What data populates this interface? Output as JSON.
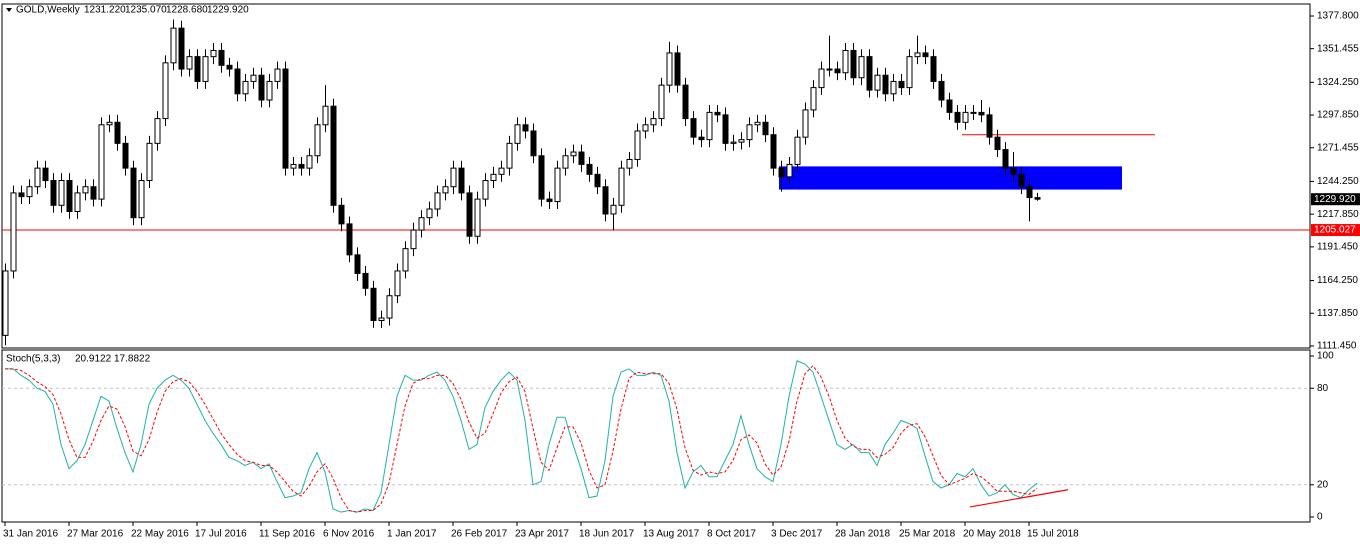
{
  "chart_data": [
    {
      "type": "candlestick",
      "title": "GOLD,Weekly",
      "header_values": [
        "1231.220",
        "1235.070",
        "1228.680",
        "1229.920"
      ],
      "categories": [
        "31 Jan 2016",
        null,
        null,
        null,
        null,
        null,
        null,
        null,
        "27 Mar 2016",
        null,
        null,
        null,
        null,
        null,
        null,
        null,
        "22 May 2016",
        null,
        null,
        null,
        null,
        null,
        null,
        null,
        "17 Jul 2016",
        null,
        null,
        null,
        null,
        null,
        null,
        null,
        "11 Sep 2016",
        null,
        null,
        null,
        null,
        null,
        null,
        null,
        "6 Nov 2016",
        null,
        null,
        null,
        null,
        null,
        null,
        null,
        "1 Jan 2017",
        null,
        null,
        null,
        null,
        null,
        null,
        null,
        "26 Feb 2017",
        null,
        null,
        null,
        null,
        null,
        null,
        null,
        "23 Apr 2017",
        null,
        null,
        null,
        null,
        null,
        null,
        null,
        "18 Jun 2017",
        null,
        null,
        null,
        null,
        null,
        null,
        null,
        "13 Aug 2017",
        null,
        null,
        null,
        null,
        null,
        null,
        null,
        "8 Oct 2017",
        null,
        null,
        null,
        null,
        null,
        null,
        null,
        "3 Dec 2017",
        null,
        null,
        null,
        null,
        null,
        null,
        null,
        "28 Jan 2018",
        null,
        null,
        null,
        null,
        null,
        null,
        null,
        "25 Mar 2018",
        null,
        null,
        null,
        null,
        null,
        null,
        null,
        "20 May 2018",
        null,
        null,
        null,
        null,
        null,
        null,
        null,
        "15 Jul 2018",
        null
      ],
      "open": [
        1120,
        1172,
        1235,
        1232,
        1240,
        1255,
        1245,
        1225,
        1245,
        1220,
        1235,
        1240,
        1230,
        1290,
        1292,
        1275,
        1255,
        1215,
        1245,
        1275,
        1295,
        1340,
        1368,
        1335,
        1345,
        1325,
        1345,
        1350,
        1338,
        1335,
        1315,
        1325,
        1330,
        1310,
        1325,
        1335,
        1255,
        1258,
        1255,
        1265,
        1290,
        1305,
        1225,
        1210,
        1185,
        1170,
        1158,
        1132,
        1134,
        1152,
        1172,
        1190,
        1205,
        1215,
        1222,
        1235,
        1240,
        1255,
        1235,
        1200,
        1230,
        1245,
        1250,
        1255,
        1275,
        1290,
        1285,
        1265,
        1230,
        1228,
        1255,
        1265,
        1268,
        1258,
        1250,
        1240,
        1218,
        1225,
        1255,
        1262,
        1285,
        1290,
        1295,
        1322,
        1348,
        1322,
        1295,
        1280,
        1278,
        1300,
        1298,
        1275,
        1276,
        1278,
        1290,
        1292,
        1282,
        1255,
        1248,
        1258,
        1280,
        1302,
        1320,
        1335,
        1335,
        1332,
        1350,
        1328,
        1345,
        1318,
        1330,
        1315,
        1325,
        1320,
        1345,
        1348,
        1345,
        1325,
        1310,
        1300,
        1292,
        1300,
        1300,
        1298,
        1280,
        1270,
        1255,
        1250,
        1240,
        1231.22
      ],
      "high": [
        1178,
        1241,
        1241,
        1246,
        1261,
        1261,
        1251,
        1251,
        1251,
        1241,
        1246,
        1246,
        1296,
        1298,
        1298,
        1281,
        1261,
        1251,
        1281,
        1301,
        1346,
        1375,
        1374,
        1351,
        1351,
        1351,
        1356,
        1356,
        1344,
        1341,
        1331,
        1336,
        1336,
        1331,
        1341,
        1341,
        1264,
        1264,
        1271,
        1296,
        1322,
        1311,
        1231,
        1216,
        1191,
        1176,
        1164,
        1140,
        1158,
        1178,
        1196,
        1211,
        1221,
        1228,
        1241,
        1246,
        1261,
        1261,
        1241,
        1236,
        1251,
        1256,
        1261,
        1281,
        1296,
        1296,
        1291,
        1271,
        1236,
        1261,
        1271,
        1274,
        1274,
        1264,
        1256,
        1246,
        1231,
        1261,
        1268,
        1291,
        1296,
        1301,
        1328,
        1357,
        1354,
        1328,
        1301,
        1286,
        1306,
        1306,
        1304,
        1282,
        1284,
        1296,
        1298,
        1298,
        1288,
        1261,
        1264,
        1286,
        1308,
        1326,
        1341,
        1362,
        1341,
        1356,
        1356,
        1351,
        1351,
        1336,
        1336,
        1331,
        1331,
        1351,
        1362,
        1354,
        1351,
        1331,
        1316,
        1306,
        1306,
        1306,
        1310,
        1304,
        1286,
        1276,
        1268,
        1256,
        1246,
        1235.07
      ],
      "low": [
        1112,
        1166,
        1226,
        1226,
        1234,
        1239,
        1219,
        1219,
        1214,
        1214,
        1229,
        1224,
        1224,
        1284,
        1269,
        1249,
        1209,
        1209,
        1239,
        1269,
        1289,
        1334,
        1329,
        1329,
        1319,
        1319,
        1339,
        1332,
        1329,
        1309,
        1309,
        1319,
        1304,
        1304,
        1319,
        1249,
        1249,
        1249,
        1249,
        1259,
        1284,
        1219,
        1204,
        1179,
        1164,
        1152,
        1126,
        1126,
        1128,
        1146,
        1166,
        1184,
        1199,
        1209,
        1216,
        1229,
        1234,
        1229,
        1194,
        1194,
        1224,
        1239,
        1244,
        1249,
        1269,
        1279,
        1259,
        1224,
        1222,
        1222,
        1249,
        1259,
        1252,
        1244,
        1234,
        1212,
        1205,
        1219,
        1249,
        1256,
        1279,
        1284,
        1289,
        1316,
        1316,
        1289,
        1274,
        1272,
        1272,
        1292,
        1269,
        1269,
        1270,
        1272,
        1284,
        1276,
        1249,
        1236,
        1242,
        1252,
        1274,
        1296,
        1314,
        1329,
        1326,
        1326,
        1322,
        1322,
        1312,
        1312,
        1309,
        1309,
        1314,
        1314,
        1339,
        1339,
        1319,
        1304,
        1294,
        1286,
        1286,
        1294,
        1292,
        1274,
        1264,
        1249,
        1244,
        1234,
        1212,
        1228.68
      ],
      "close": [
        1172,
        1235,
        1232,
        1240,
        1255,
        1245,
        1225,
        1245,
        1220,
        1235,
        1240,
        1230,
        1290,
        1292,
        1275,
        1255,
        1215,
        1245,
        1275,
        1295,
        1340,
        1368,
        1335,
        1345,
        1325,
        1345,
        1350,
        1338,
        1335,
        1315,
        1325,
        1330,
        1310,
        1325,
        1335,
        1255,
        1258,
        1255,
        1265,
        1290,
        1305,
        1225,
        1210,
        1185,
        1170,
        1158,
        1132,
        1134,
        1152,
        1172,
        1190,
        1205,
        1215,
        1222,
        1235,
        1240,
        1255,
        1235,
        1200,
        1230,
        1245,
        1250,
        1255,
        1275,
        1290,
        1285,
        1265,
        1230,
        1228,
        1255,
        1265,
        1268,
        1258,
        1250,
        1240,
        1218,
        1225,
        1255,
        1262,
        1285,
        1290,
        1295,
        1322,
        1348,
        1322,
        1295,
        1280,
        1278,
        1300,
        1298,
        1275,
        1276,
        1278,
        1290,
        1292,
        1282,
        1255,
        1248,
        1258,
        1280,
        1302,
        1320,
        1335,
        1335,
        1332,
        1350,
        1328,
        1345,
        1318,
        1330,
        1315,
        1325,
        1320,
        1345,
        1348,
        1345,
        1325,
        1310,
        1300,
        1292,
        1300,
        1300,
        1298,
        1280,
        1270,
        1255,
        1250,
        1240,
        1231.22,
        1229.92
      ],
      "ylim": [
        1109.8,
        1387.5
      ],
      "yticks": [
        {
          "value": 1377.8,
          "label": "1377.800"
        },
        {
          "value": 1351.455,
          "label": "1351.455"
        },
        {
          "value": 1324.25,
          "label": "1324.250"
        },
        {
          "value": 1297.85,
          "label": "1297.850"
        },
        {
          "value": 1271.455,
          "label": "1271.455"
        },
        {
          "value": 1244.25,
          "label": "1244.250"
        },
        {
          "value": 1217.85,
          "label": "1217.850"
        },
        {
          "value": 1191.45,
          "label": "1191.450"
        },
        {
          "value": 1164.25,
          "label": "1164.250"
        },
        {
          "value": 1137.85,
          "label": "1137.850"
        },
        {
          "value": 1111.45,
          "label": "1111.450"
        }
      ],
      "last_price": {
        "value": 1229.92,
        "label": "1229.920"
      },
      "hline": {
        "value": 1205.027,
        "label": "1205.027",
        "color": "#ff0000"
      },
      "resistance": {
        "value": 1282,
        "color": "#ff0000"
      },
      "zone": {
        "values": [
          1237.7,
          1256.4
        ],
        "color": "#0000ff"
      }
    },
    {
      "type": "line",
      "title": "Stoch(5,3,3)",
      "series": [
        {
          "color": "#20b2aa",
          "values": [
            92,
            92,
            88,
            85,
            80,
            78,
            70,
            45,
            30,
            35,
            45,
            60,
            75,
            72,
            55,
            40,
            28,
            45,
            70,
            80,
            85,
            88,
            85,
            80,
            70,
            60,
            52,
            45,
            37,
            35,
            32,
            34,
            30,
            33,
            22,
            12,
            13,
            15,
            30,
            40,
            28,
            5,
            3,
            4,
            3,
            5,
            4,
            15,
            45,
            75,
            88,
            85,
            85,
            88,
            90,
            85,
            75,
            60,
            42,
            45,
            68,
            78,
            85,
            90,
            85,
            60,
            20,
            22,
            45,
            62,
            62,
            45,
            30,
            12,
            13,
            35,
            75,
            90,
            92,
            88,
            88,
            90,
            88,
            72,
            40,
            18,
            28,
            32,
            25,
            25,
            35,
            45,
            63,
            45,
            30,
            25,
            22,
            45,
            75,
            97,
            95,
            90,
            75,
            60,
            45,
            42,
            45,
            40,
            40,
            32,
            45,
            52,
            60,
            58,
            55,
            38,
            22,
            18,
            20,
            27,
            25,
            30,
            20,
            13,
            15,
            20,
            14,
            12,
            17,
            20.9122
          ]
        },
        {
          "color": "#ff0000",
          "dashed": true,
          "values": [
            92,
            92,
            91,
            88,
            84,
            81,
            76,
            64,
            48,
            37,
            37,
            47,
            60,
            69,
            67,
            56,
            41,
            38,
            48,
            65,
            78,
            84,
            86,
            84,
            78,
            70,
            61,
            52,
            45,
            39,
            35,
            34,
            32,
            32,
            28,
            22,
            16,
            13,
            19,
            28,
            33,
            24,
            12,
            4,
            3,
            4,
            4,
            8,
            21,
            45,
            69,
            83,
            86,
            86,
            88,
            88,
            83,
            73,
            59,
            49,
            52,
            64,
            77,
            84,
            87,
            78,
            55,
            34,
            29,
            43,
            56,
            56,
            46,
            29,
            18,
            20,
            41,
            67,
            86,
            90,
            89,
            89,
            89,
            83,
            67,
            43,
            29,
            26,
            28,
            27,
            28,
            35,
            48,
            51,
            46,
            33,
            26,
            31,
            47,
            72,
            89,
            94,
            87,
            75,
            60,
            49,
            44,
            42,
            42,
            37,
            39,
            43,
            52,
            57,
            58,
            50,
            38,
            26,
            20,
            22,
            24,
            27,
            25,
            21,
            16,
            16,
            16,
            15,
            14,
            17.8822
          ]
        }
      ],
      "ylim": [
        -3.125,
        103.75
      ],
      "yticks": [
        100,
        80,
        20,
        0
      ],
      "trendline": {
        "values": [
          6.25,
          16.9
        ],
        "color": "#ff0000"
      }
    }
  ]
}
